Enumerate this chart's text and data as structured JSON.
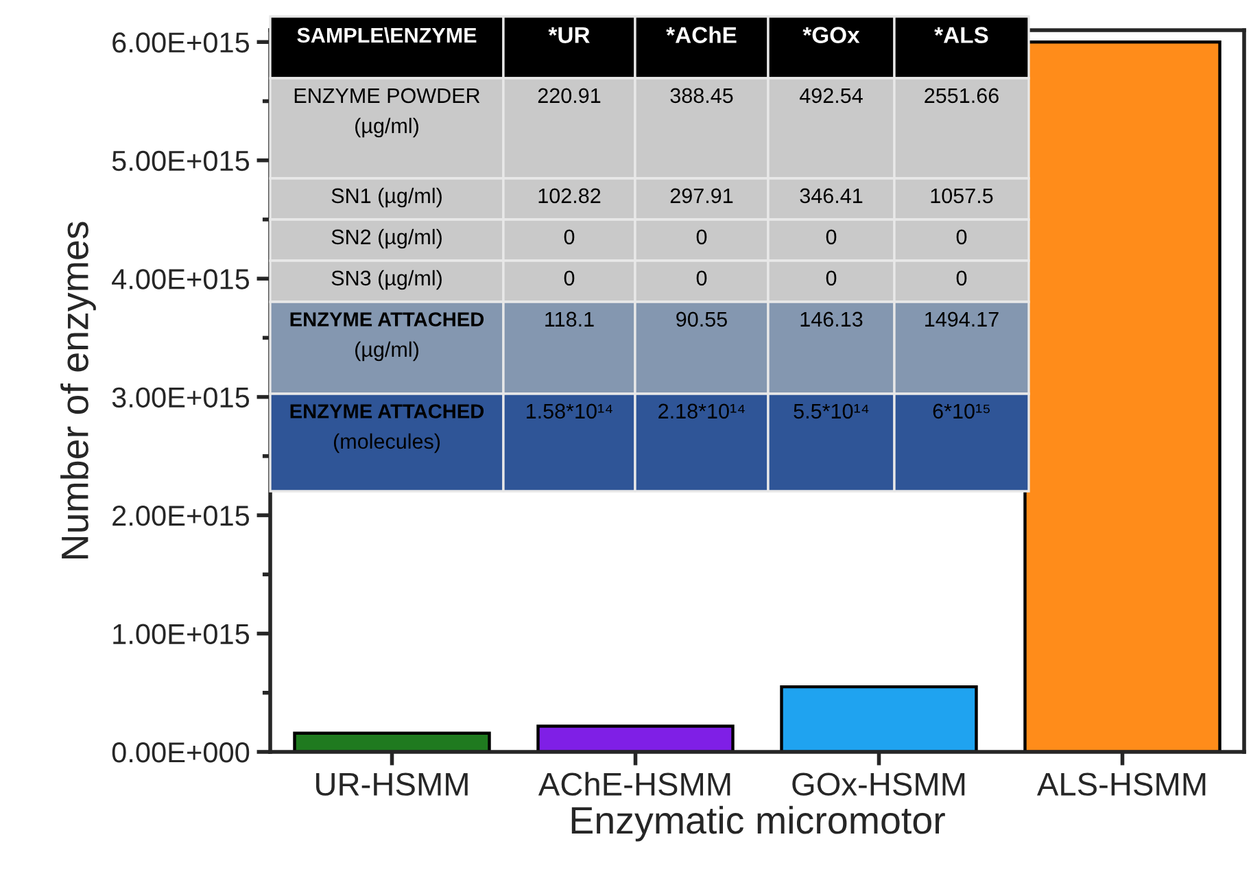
{
  "chart_data": {
    "type": "bar",
    "xlabel": "Enzymatic micromotor",
    "ylabel": "Number of enzymes",
    "categories": [
      "UR-HSMM",
      "AChE-HSMM",
      "GOx-HSMM",
      "ALS-HSMM"
    ],
    "values": [
      158000000000000.0,
      218000000000000.0,
      550000000000000.0,
      6000000000000000.0
    ],
    "colors": [
      "#1f7a1f",
      "#7f1fe6",
      "#1fa3f0",
      "#ff8c1a"
    ],
    "ylim": [
      0,
      6100000000000000.0
    ],
    "yticks": [
      {
        "value": 0,
        "label": "0.00E+000"
      },
      {
        "value": 1000000000000000.0,
        "label": "1.00E+015"
      },
      {
        "value": 2000000000000000.0,
        "label": "2.00E+015"
      },
      {
        "value": 3000000000000000.0,
        "label": "3.00E+015"
      },
      {
        "value": 4000000000000000.0,
        "label": "4.00E+015"
      },
      {
        "value": 5000000000000000.0,
        "label": "5.00E+015"
      },
      {
        "value": 6000000000000000.0,
        "label": "6.00E+015"
      }
    ],
    "grid": false,
    "annotations": [
      "SAMPLE\\ENZYME",
      "*UR",
      "*AChE",
      "*GOx",
      "*ALS",
      "ENZYME POWDER\n(µg/ml)",
      "220.91",
      "388.45",
      "492.54",
      "2551.66",
      "SN1 (µg/ml)",
      "102.82",
      "297.91",
      "346.41",
      "1057.5",
      "SN2 (µg/ml)",
      "0",
      "0",
      "0",
      "0",
      "SN3 (µg/ml)",
      "0",
      "0",
      "0",
      "0",
      "ENZYME ATTACHED\n(µg/ml)",
      "118.1",
      "90.55",
      "146.13",
      "1494.17",
      "ENZYME ATTACHED\n(molecules)",
      "1.58*10¹⁴",
      "2.18*10¹⁴",
      "5.5*10¹⁴",
      "6*10¹⁵"
    ]
  }
}
